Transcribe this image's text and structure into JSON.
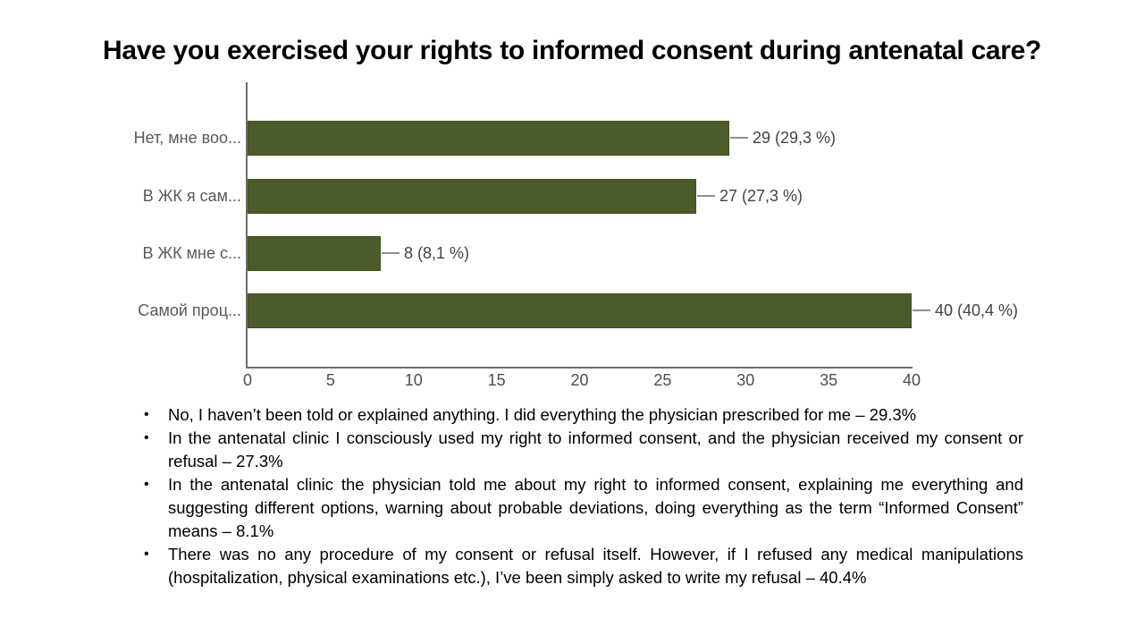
{
  "title": "Have you exercised your rights to informed consent during antenatal care?",
  "chart_data": {
    "type": "bar",
    "orientation": "horizontal",
    "title": "Have you exercised your rights to informed consent during antenatal care?",
    "categories": [
      "Нет, мне воо...",
      "В ЖК я сам...",
      "В ЖК мне с...",
      "Самой проц..."
    ],
    "values": [
      29,
      27,
      8,
      40
    ],
    "value_labels": [
      "29 (29,3 %)",
      "27 (27,3 %)",
      "8 (8,1 %)",
      "40 (40,4 %)"
    ],
    "x_ticks": [
      0,
      5,
      10,
      15,
      20,
      25,
      30,
      35,
      40
    ],
    "xlim": [
      0,
      40
    ],
    "grid": false,
    "legend": false,
    "colors": {
      "bar": "#4C5B2A",
      "bar_border": "#41501F",
      "axis": "#6E6E6E",
      "category_label": "#595959",
      "value_label": "#3F434B",
      "tick_label": "#4A4E55",
      "connector": "#8F8F8F"
    }
  },
  "bullets": [
    "No, I haven’t been told or explained anything. I did everything the physician prescribed for me – 29.3%",
    "In the antenatal clinic I consciously used my right to informed consent, and the physician received my consent or refusal – 27.3%",
    "In the antenatal clinic the physician told me about my right to informed consent, explaining me everything and suggesting different options, warning about probable deviations, doing everything as the term “Informed Consent” means – 8.1%",
    "There was no any procedure of my consent or refusal itself. However, if I refused any medical manipulations (hospitalization, physical examinations etc.), I’ve been simply asked to write my refusal – 40.4%"
  ],
  "bullet_marker": "•"
}
